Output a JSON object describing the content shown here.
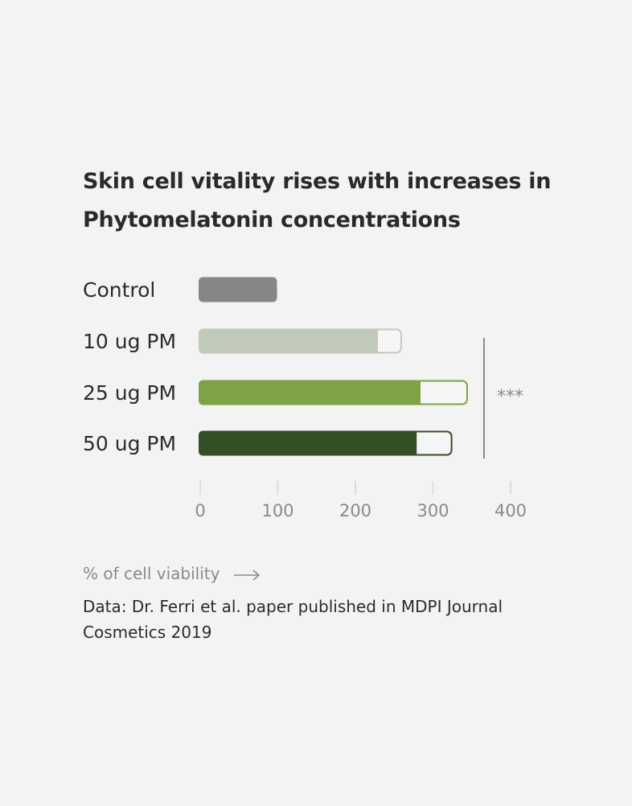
{
  "chart_data": {
    "type": "bar",
    "orientation": "horizontal",
    "title": "Skin cell vitality rises with increases in Phytomelatonin concentrations",
    "categories": [
      "Control",
      "10 ug PM",
      "25 ug PM",
      "50 ug PM"
    ],
    "values": [
      100,
      230,
      285,
      280
    ],
    "upper_values": [
      100,
      260,
      345,
      325
    ],
    "colors": [
      "#868686",
      "#c1cab8",
      "#7ea245",
      "#354f24"
    ],
    "xlim": [
      0,
      400
    ],
    "xticks": [
      0,
      100,
      200,
      300,
      400
    ],
    "xlabel": "% of cell viability",
    "significance_label": "***",
    "grid": false,
    "legend": "none"
  },
  "footer": {
    "source": "Data: Dr. Ferri et al. paper published in MDPI Journal Cosmetics 2019"
  }
}
